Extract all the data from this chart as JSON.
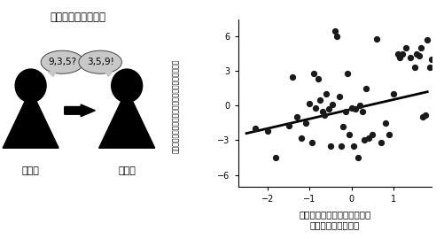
{
  "scatter_x": [
    -2.3,
    -2.0,
    -1.8,
    -1.5,
    -1.4,
    -1.3,
    -1.2,
    -1.1,
    -1.0,
    -0.95,
    -0.9,
    -0.85,
    -0.8,
    -0.75,
    -0.7,
    -0.65,
    -0.6,
    -0.55,
    -0.5,
    -0.45,
    -0.4,
    -0.35,
    -0.3,
    -0.25,
    -0.2,
    -0.15,
    -0.1,
    -0.05,
    0.0,
    0.05,
    0.1,
    0.15,
    0.2,
    0.25,
    0.3,
    0.35,
    0.4,
    0.5,
    0.6,
    0.7,
    0.8,
    0.9,
    1.0,
    1.1,
    1.15,
    1.2,
    1.3,
    1.4,
    1.5,
    1.55,
    1.6,
    1.65,
    1.7,
    1.75,
    1.8,
    1.85,
    1.9
  ],
  "scatter_y": [
    -2.0,
    -2.2,
    -4.5,
    -1.7,
    2.5,
    -1.0,
    -2.8,
    -1.5,
    0.2,
    -3.2,
    2.8,
    -0.2,
    2.3,
    0.5,
    -0.5,
    -0.8,
    1.0,
    -0.3,
    -3.5,
    0.1,
    6.5,
    6.0,
    0.8,
    -3.5,
    -1.8,
    -0.5,
    2.8,
    -2.5,
    -0.2,
    -3.5,
    -0.3,
    -4.5,
    0.0,
    -0.5,
    -3.0,
    1.5,
    -2.8,
    -2.5,
    5.8,
    -3.2,
    -1.5,
    -2.5,
    1.0,
    4.5,
    4.2,
    4.5,
    5.0,
    4.2,
    3.3,
    4.5,
    4.3,
    5.0,
    -1.0,
    -0.8,
    5.7,
    3.3,
    4.0
  ],
  "line_x": [
    -2.5,
    1.8
  ],
  "line_y": [
    -2.4,
    1.2
  ],
  "xlim": [
    -2.7,
    1.9
  ],
  "ylim": [
    -7,
    7.5
  ],
  "yticks": [
    -6,
    -3,
    0,
    3,
    6
  ],
  "xticks": [
    -2,
    -1,
    0,
    1
  ],
  "xlabel_line1": "脳結合パターンから予測した",
  "xlabel_line2": "作業記憶能力スコア",
  "ylabel_chars": "コノステストを実際に測定した数字並び替えスコア",
  "title_left": "数字並べ替えテスト",
  "label_experimenter": "実験者",
  "label_subject": "被験者",
  "bubble_left": "9,3,5?",
  "bubble_right": "3,5,9!",
  "dot_color": "#1a1a1a",
  "line_color": "#000000",
  "dot_size": 18,
  "figure_bgcolor": "#ffffff"
}
